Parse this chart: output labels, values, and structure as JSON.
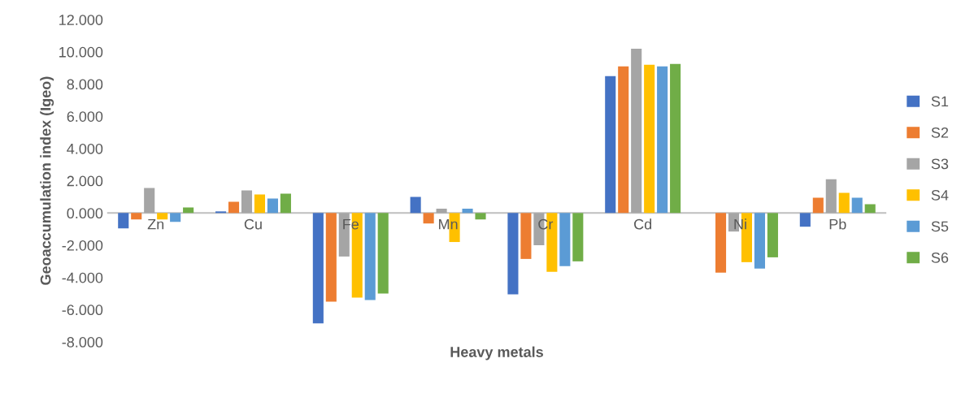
{
  "chart_data": {
    "type": "bar",
    "xlabel": "Heavy metals",
    "ylabel": "Geoaccumulation index (Igeo)",
    "categories": [
      "Zn",
      "Cu",
      "Fe",
      "Mn",
      "Cr",
      "Cd",
      "Ni",
      "Pb"
    ],
    "series": [
      {
        "name": "S1",
        "color": "#4472c4",
        "values": [
          -0.95,
          0.1,
          -6.85,
          1.0,
          -5.05,
          8.5,
          0,
          -0.85
        ]
      },
      {
        "name": "S2",
        "color": "#ed7d31",
        "values": [
          -0.4,
          0.7,
          -5.5,
          -0.65,
          -2.85,
          9.1,
          -3.7,
          0.95
        ]
      },
      {
        "name": "S3",
        "color": "#a5a5a5",
        "values": [
          1.55,
          1.4,
          -2.7,
          0.27,
          -2.0,
          10.2,
          -1.15,
          2.1
        ]
      },
      {
        "name": "S4",
        "color": "#ffc000",
        "values": [
          -0.4,
          1.15,
          -5.25,
          -1.8,
          -3.65,
          9.2,
          -3.05,
          1.25
        ]
      },
      {
        "name": "S5",
        "color": "#5b9bd5",
        "values": [
          -0.55,
          0.9,
          -5.4,
          0.27,
          -3.3,
          9.1,
          -3.45,
          0.95
        ]
      },
      {
        "name": "S6",
        "color": "#70ad47",
        "values": [
          0.35,
          1.2,
          -5.0,
          -0.4,
          -3.0,
          9.25,
          -2.75,
          0.55
        ]
      }
    ],
    "ylim": [
      -8,
      12
    ],
    "yticks": [
      {
        "value": -8,
        "label": "-8.000"
      },
      {
        "value": -6,
        "label": "-6.000"
      },
      {
        "value": -4,
        "label": "-4.000"
      },
      {
        "value": -2,
        "label": "-2.000"
      },
      {
        "value": 0,
        "label": "0.000"
      },
      {
        "value": 2,
        "label": "2.000"
      },
      {
        "value": 4,
        "label": "4.000"
      },
      {
        "value": 6,
        "label": "6.000"
      },
      {
        "value": 8,
        "label": "8.000"
      },
      {
        "value": 10,
        "label": "10.000"
      },
      {
        "value": 12,
        "label": "12.000"
      }
    ],
    "grid": false,
    "legend": "right"
  }
}
